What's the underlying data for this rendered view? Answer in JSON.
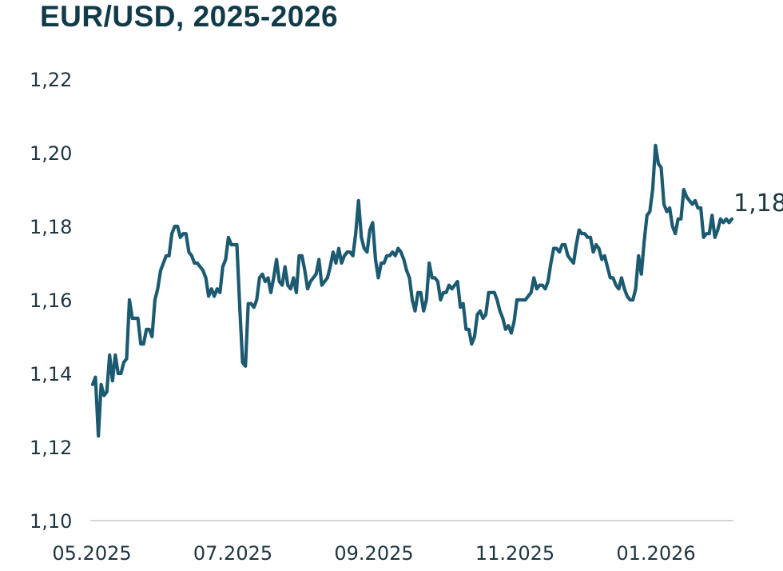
{
  "chart_data": {
    "type": "line",
    "title": "EUR/USD, 2025-2026",
    "xlabel": "",
    "ylabel": "",
    "ylim": [
      1.1,
      1.22
    ],
    "y_ticks": [
      1.1,
      1.12,
      1.14,
      1.16,
      1.18,
      1.2,
      1.22
    ],
    "y_tick_labels": [
      "1,10",
      "1,12",
      "1,14",
      "1,16",
      "1,18",
      "1,20",
      "1,22"
    ],
    "x_tick_labels": [
      "05.2025",
      "07.2025",
      "09.2025",
      "11.2025",
      "01.2026"
    ],
    "end_label": "1,18",
    "color": "#1b5a70",
    "series": [
      {
        "values": [
          1.137,
          1.139,
          1.123,
          1.137,
          1.134,
          1.135,
          1.145,
          1.138,
          1.145,
          1.14,
          1.14,
          1.143,
          1.144,
          1.16,
          1.155,
          1.155,
          1.155,
          1.148,
          1.148,
          1.152,
          1.152,
          1.15,
          1.16,
          1.163,
          1.168,
          1.17,
          1.172,
          1.172,
          1.178,
          1.18,
          1.18,
          1.177,
          1.178,
          1.178,
          1.173,
          1.172,
          1.17,
          1.17,
          1.169,
          1.168,
          1.166,
          1.161,
          1.163,
          1.161,
          1.163,
          1.162,
          1.169,
          1.171,
          1.177,
          1.175,
          1.175,
          1.175,
          1.158,
          1.143,
          1.142,
          1.159,
          1.159,
          1.158,
          1.16,
          1.166,
          1.167,
          1.165,
          1.166,
          1.162,
          1.166,
          1.171,
          1.165,
          1.164,
          1.169,
          1.164,
          1.163,
          1.166,
          1.162,
          1.172,
          1.172,
          1.168,
          1.163,
          1.165,
          1.166,
          1.167,
          1.171,
          1.164,
          1.165,
          1.166,
          1.169,
          1.173,
          1.17,
          1.174,
          1.17,
          1.172,
          1.173,
          1.173,
          1.172,
          1.178,
          1.187,
          1.177,
          1.174,
          1.173,
          1.179,
          1.181,
          1.171,
          1.166,
          1.17,
          1.17,
          1.172,
          1.172,
          1.173,
          1.172,
          1.174,
          1.173,
          1.171,
          1.168,
          1.166,
          1.16,
          1.157,
          1.162,
          1.162,
          1.157,
          1.16,
          1.17,
          1.166,
          1.166,
          1.165,
          1.16,
          1.162,
          1.162,
          1.164,
          1.163,
          1.164,
          1.165,
          1.158,
          1.159,
          1.152,
          1.152,
          1.148,
          1.15,
          1.156,
          1.157,
          1.155,
          1.156,
          1.162,
          1.162,
          1.162,
          1.16,
          1.157,
          1.155,
          1.152,
          1.153,
          1.151,
          1.154,
          1.16,
          1.16,
          1.16,
          1.16,
          1.161,
          1.162,
          1.166,
          1.163,
          1.164,
          1.164,
          1.163,
          1.165,
          1.17,
          1.174,
          1.174,
          1.173,
          1.175,
          1.175,
          1.172,
          1.171,
          1.17,
          1.175,
          1.179,
          1.178,
          1.178,
          1.177,
          1.177,
          1.173,
          1.175,
          1.174,
          1.171,
          1.172,
          1.169,
          1.166,
          1.166,
          1.164,
          1.163,
          1.166,
          1.163,
          1.161,
          1.16,
          1.16,
          1.163,
          1.172,
          1.167,
          1.176,
          1.183,
          1.184,
          1.19,
          1.202,
          1.197,
          1.196,
          1.186,
          1.184,
          1.185,
          1.18,
          1.178,
          1.182,
          1.182,
          1.19,
          1.188,
          1.187,
          1.186,
          1.187,
          1.185,
          1.185,
          1.177,
          1.178,
          1.178,
          1.183,
          1.177,
          1.179,
          1.182,
          1.181,
          1.182,
          1.181,
          1.182
        ]
      }
    ]
  }
}
